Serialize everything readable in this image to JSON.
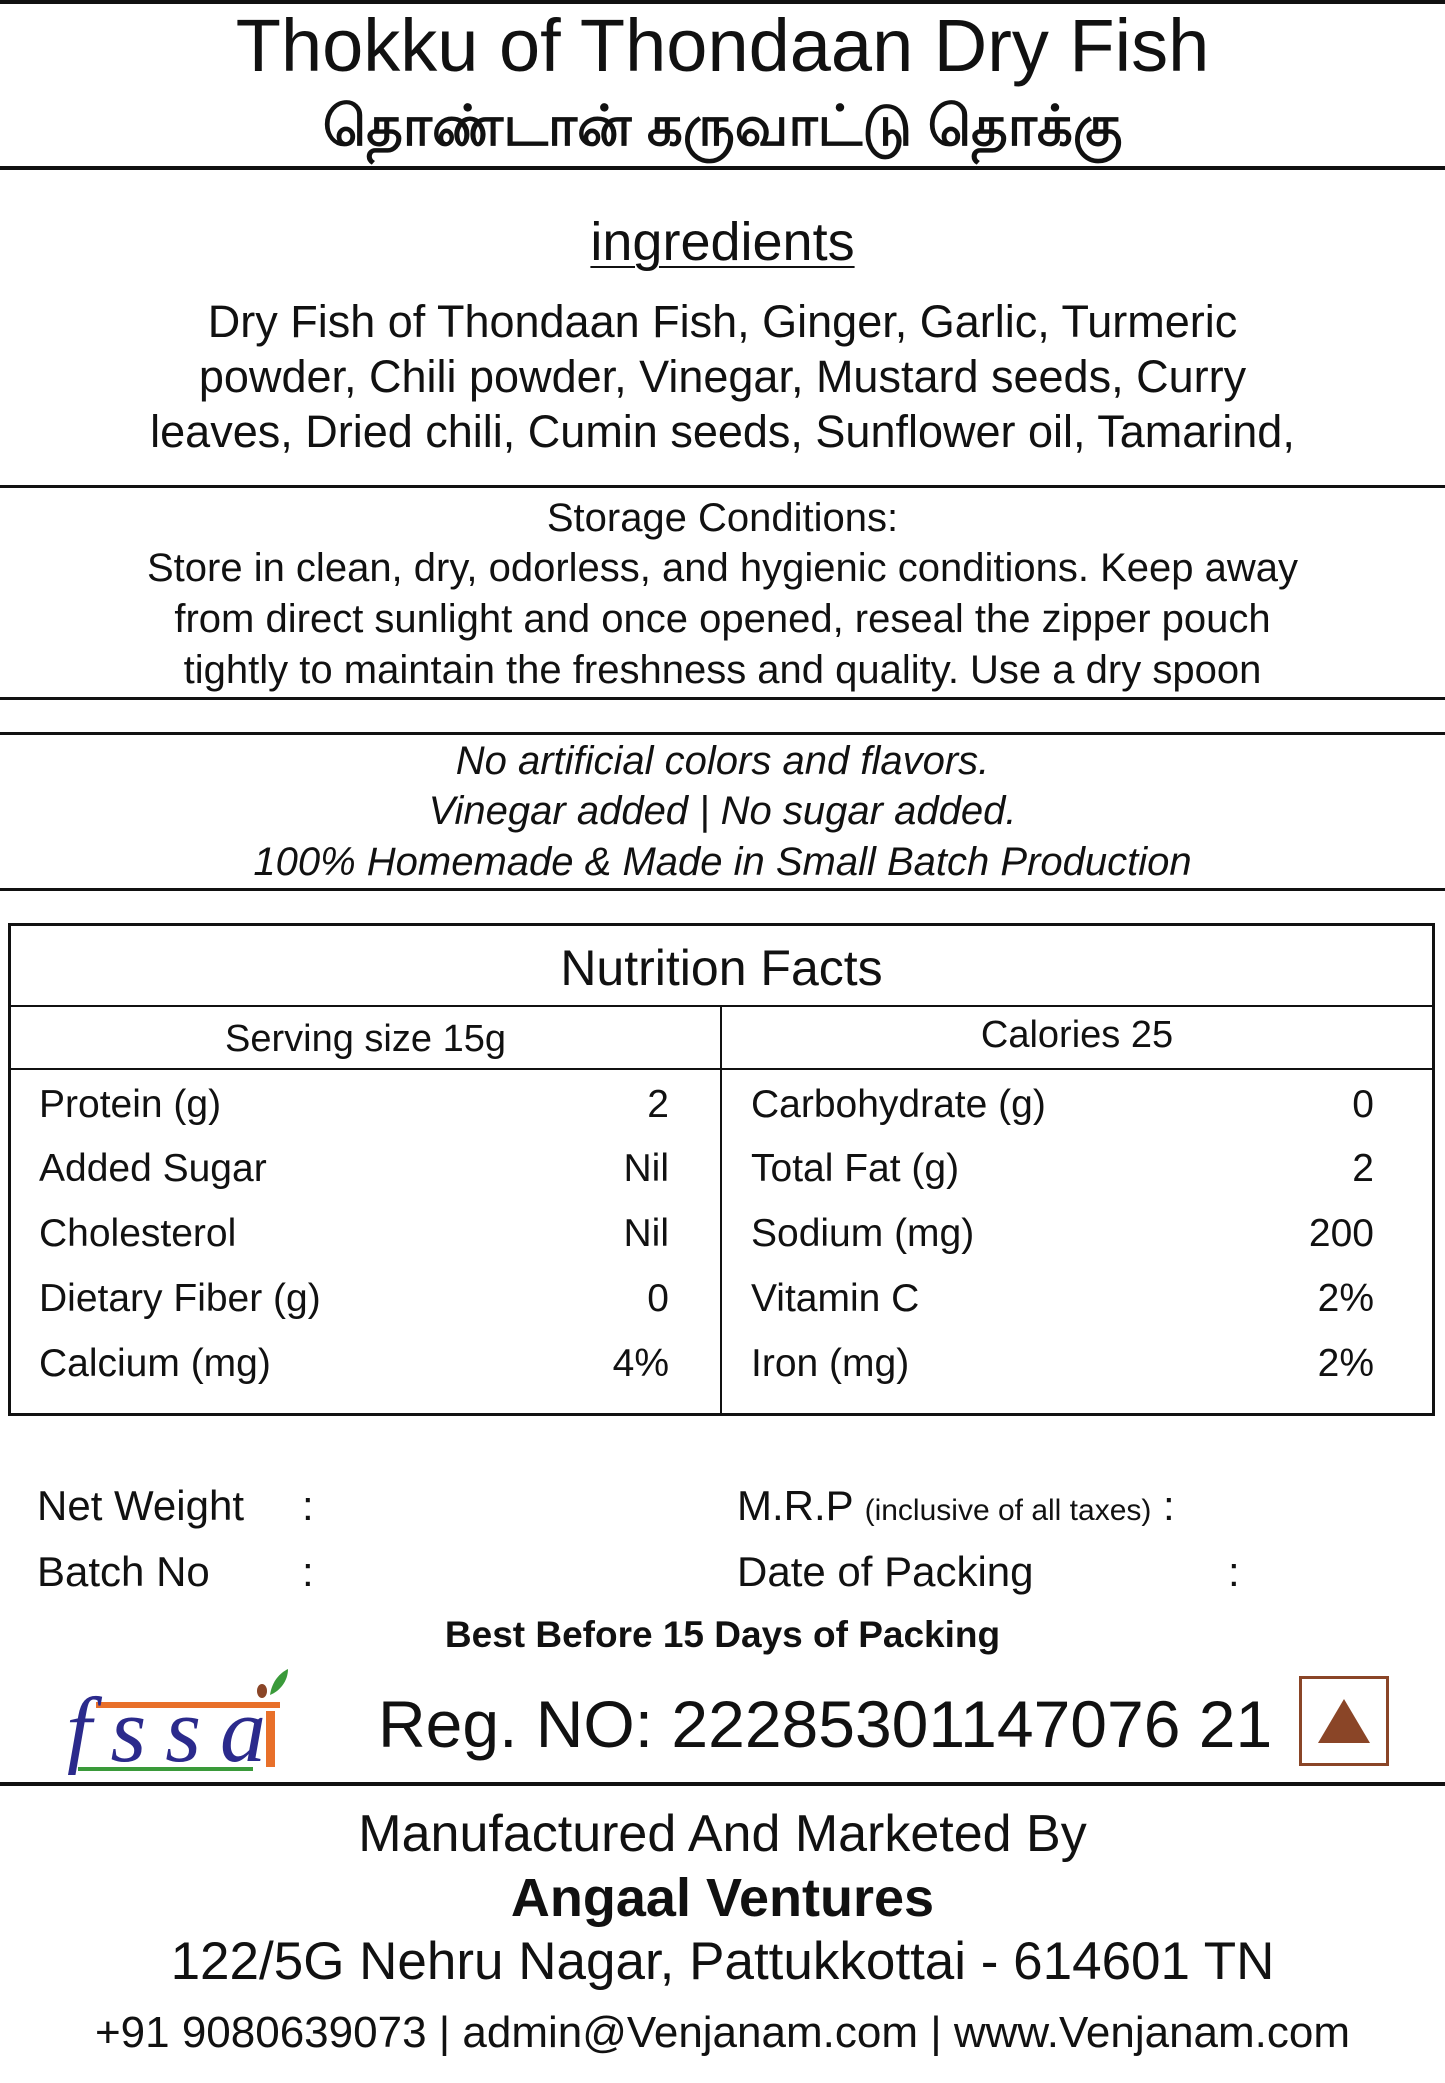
{
  "header": {
    "title": "Thokku of Thondaan Dry Fish",
    "title_tamil": "தொண்டான் கருவாட்டு தொக்கு"
  },
  "ingredients": {
    "heading": "ingredients",
    "lines": [
      "Dry Fish of Thondaan Fish, Ginger, Garlic, Turmeric",
      "powder, Chili powder, Vinegar, Mustard seeds, Curry",
      "leaves, Dried chili, Cumin seeds, Sunflower oil, Tamarind,"
    ]
  },
  "storage": {
    "heading": "Storage Conditions:",
    "lines": [
      "Store in clean, dry, odorless, and hygienic conditions. Keep away",
      "from direct sunlight and once opened, reseal the zipper pouch",
      "tightly to maintain the freshness and quality. Use a dry spoon"
    ]
  },
  "claims": [
    "No artificial colors and flavors.",
    "Vinegar added | No sugar added.",
    "100% Homemade & Made in Small Batch Production"
  ],
  "nutrition": {
    "title": "Nutrition Facts",
    "serving_size": "Serving size 15g",
    "calories": "Calories 25",
    "left": [
      {
        "label": "Protein (g)",
        "value": "2"
      },
      {
        "label": "Added Sugar",
        "value": "Nil"
      },
      {
        "label": "Cholesterol",
        "value": "Nil"
      },
      {
        "label": "Dietary Fiber (g)",
        "value": "0"
      },
      {
        "label": "Calcium (mg)",
        "value": "4%"
      }
    ],
    "right": [
      {
        "label": "Carbohydrate (g)",
        "value": "0"
      },
      {
        "label": "Total Fat (g)",
        "value": "2"
      },
      {
        "label": "Sodium (mg)",
        "value": "200"
      },
      {
        "label": "Vitamin C",
        "value": "2%"
      },
      {
        "label": "Iron (mg)",
        "value": "2%"
      }
    ]
  },
  "info": {
    "net_weight": "Net Weight",
    "batch_no": "Batch No",
    "mrp": "M.R.P",
    "mrp_note": "(inclusive of all taxes)",
    "date_of_packing": "Date of Packing",
    "colon": ":",
    "best_before": "Best Before 15 Days of Packing"
  },
  "fssai": {
    "logo_text": "fssai",
    "reg_no": "Reg. NO: 22285301147076 21",
    "colors": {
      "blue": "#2b2a8c",
      "orange": "#e8702a",
      "green": "#3a9a3a",
      "veg_mark": "#8a4527"
    }
  },
  "footer": {
    "line1": "Manufactured And Marketed By",
    "company": "Angaal Ventures",
    "address": "122/5G Nehru Nagar, Pattukkottai - 614601 TN",
    "contact": "+91 9080639073 | admin@Venjanam.com | www.Venjanam.com"
  }
}
